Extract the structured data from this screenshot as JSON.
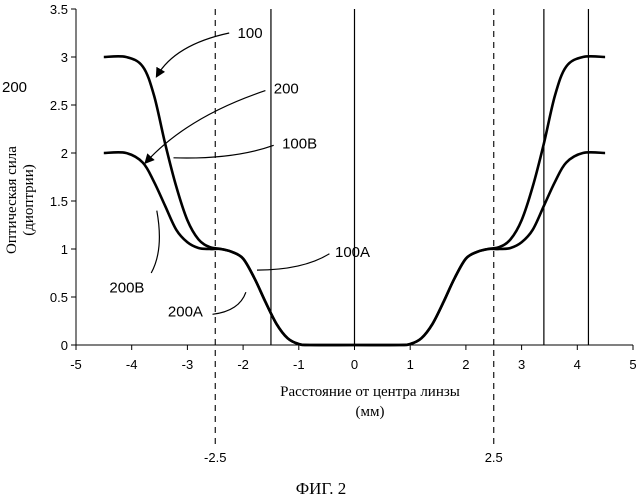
{
  "chart_data": {
    "type": "line",
    "xlabel_line1": "Расстояние от центра линзы",
    "xlabel_line2": "(мм)",
    "ylabel_line1": "Оптическая сила",
    "ylabel_line2": "(диоптрии)",
    "xlim": [
      -5,
      5
    ],
    "ylim": [
      0,
      3.5
    ],
    "xticks": [
      "-5",
      "-4",
      "-3",
      "-2",
      "-1",
      "0",
      "1",
      "2",
      "3",
      "4",
      "5"
    ],
    "yticks": [
      "0",
      "0.5",
      "1",
      "1.5",
      "2",
      "2.5",
      "3",
      "3.5"
    ],
    "vertical_lines": [
      -1.5,
      0,
      3.4,
      4.2
    ],
    "dashed_markers": [
      {
        "x": -2.5,
        "label": "-2.5"
      },
      {
        "x": 2.5,
        "label": "2.5"
      }
    ],
    "series": [
      {
        "name": "100",
        "x": [
          -4.5,
          -4.1,
          -3.8,
          -3.6,
          -3.4,
          -3.2,
          -3.0,
          -2.8,
          -2.6,
          -2.4,
          -2.2,
          -2.0,
          -1.8,
          -1.6,
          -1.4,
          -1.2,
          -1.0,
          -0.8,
          0,
          0.8,
          1.0,
          1.2,
          1.4,
          1.6,
          1.8,
          2.0,
          2.2,
          2.4,
          2.6,
          2.8,
          3.0,
          3.2,
          3.4,
          3.6,
          3.8,
          4.1,
          4.5
        ],
        "y": [
          3.0,
          3.0,
          2.9,
          2.6,
          2.1,
          1.65,
          1.3,
          1.1,
          1.02,
          1.0,
          0.97,
          0.9,
          0.7,
          0.45,
          0.22,
          0.07,
          0.01,
          0.0,
          0.0,
          0.0,
          0.01,
          0.07,
          0.22,
          0.45,
          0.7,
          0.9,
          0.97,
          1.0,
          1.02,
          1.1,
          1.3,
          1.65,
          2.1,
          2.6,
          2.9,
          3.0,
          3.0
        ]
      },
      {
        "name": "200",
        "x": [
          -4.5,
          -4.1,
          -3.8,
          -3.6,
          -3.4,
          -3.2,
          -3.0,
          -2.8,
          -2.6,
          -2.4,
          -2.2,
          -2.0,
          -1.8,
          -1.6,
          -1.4,
          -1.2,
          -1.0,
          -0.8,
          0,
          0.8,
          1.0,
          1.2,
          1.4,
          1.6,
          1.8,
          2.0,
          2.2,
          2.4,
          2.6,
          2.8,
          3.0,
          3.2,
          3.4,
          3.6,
          3.8,
          4.1,
          4.5
        ],
        "y": [
          2.0,
          2.0,
          1.9,
          1.7,
          1.45,
          1.2,
          1.07,
          1.01,
          1.0,
          1.0,
          0.97,
          0.9,
          0.7,
          0.45,
          0.22,
          0.07,
          0.01,
          0.0,
          0.0,
          0.0,
          0.01,
          0.07,
          0.22,
          0.45,
          0.7,
          0.9,
          0.97,
          1.0,
          1.0,
          1.01,
          1.07,
          1.2,
          1.45,
          1.7,
          1.9,
          2.0,
          2.0
        ]
      }
    ],
    "annotations": [
      {
        "text": "100",
        "tx": -2.1,
        "ty": 3.25,
        "ax": -3.55,
        "ay": 2.8,
        "ex": -2.25,
        "ey": 3.25,
        "arrow": true
      },
      {
        "text": "200",
        "tx": -1.45,
        "ty": 2.67,
        "ax": -3.75,
        "ay": 1.9,
        "ex": -1.6,
        "ey": 2.65,
        "arrow": true
      },
      {
        "text": "100B",
        "tx": -1.3,
        "ty": 2.1,
        "ax": -3.25,
        "ay": 1.95,
        "ex": -1.45,
        "ey": 2.08,
        "arrow": false
      },
      {
        "text": "200B",
        "tx": -4.4,
        "ty": 0.6,
        "ax": -3.55,
        "ay": 1.4,
        "ex": -3.65,
        "ey": 0.75,
        "arrow": false
      },
      {
        "text": "100A",
        "tx": -0.35,
        "ty": 0.97,
        "ax": -1.75,
        "ay": 0.78,
        "ex": -0.45,
        "ey": 0.95,
        "arrow": false
      },
      {
        "text": "200A",
        "tx": -3.35,
        "ty": 0.35,
        "ax": -1.95,
        "ay": 0.55,
        "ex": -2.55,
        "ey": 0.32,
        "arrow": false
      }
    ],
    "side_label": "200",
    "caption": "ФИГ. 2"
  }
}
